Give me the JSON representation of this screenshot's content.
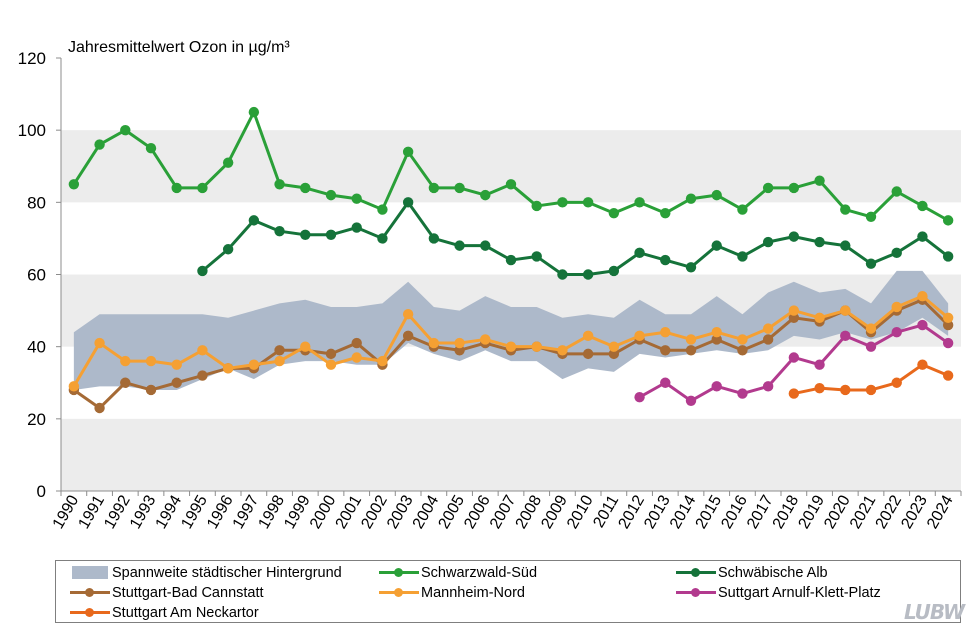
{
  "chart_data": {
    "type": "line",
    "title": "Jahresmittelwert Ozon in µg/m³",
    "years": [
      "1990",
      "1991",
      "1992",
      "1993",
      "1994",
      "1995",
      "1996",
      "1997",
      "1998",
      "1999",
      "2000",
      "2001",
      "2002",
      "2003",
      "2004",
      "2005",
      "2006",
      "2007",
      "2008",
      "2009",
      "2010",
      "2011",
      "2012",
      "2013",
      "2014",
      "2015",
      "2016",
      "2017",
      "2018",
      "2019",
      "2020",
      "2021",
      "2022",
      "2023",
      "2024"
    ],
    "ylim": [
      0,
      120
    ],
    "yticks": [
      0,
      20,
      40,
      60,
      80,
      100,
      120
    ],
    "band": {
      "name": "Spannweite städtischer Hintergrund",
      "color": "#adb9ca",
      "upper": [
        44,
        49,
        49,
        49,
        49,
        49,
        48,
        50,
        52,
        53,
        51,
        51,
        52,
        58,
        51,
        50,
        54,
        51,
        51,
        48,
        49,
        48,
        53,
        49,
        49,
        54,
        49,
        55,
        58,
        55,
        56,
        52,
        61,
        61,
        52
      ],
      "lower": [
        28,
        29,
        29,
        28,
        28,
        31,
        34,
        31,
        35,
        36,
        36,
        35,
        35,
        41,
        38,
        36,
        39,
        36,
        36,
        31,
        34,
        33,
        38,
        37,
        38,
        39,
        38,
        39,
        43,
        42,
        44,
        42,
        44,
        48,
        43
      ]
    },
    "series": [
      {
        "name": "Schwarzwald-Süd",
        "color": "#2aa038",
        "values": [
          85,
          96,
          100,
          95,
          84,
          84,
          91,
          105,
          85,
          84,
          82,
          81,
          78,
          94,
          84,
          84,
          82,
          85,
          79,
          80,
          80,
          77,
          80,
          77,
          81,
          82,
          78,
          84,
          84,
          86,
          78,
          76,
          83,
          79,
          75
        ]
      },
      {
        "name": "Schwäbische Alb",
        "color": "#15733a",
        "values": [
          null,
          null,
          null,
          null,
          null,
          61,
          67,
          75,
          72,
          71,
          71,
          73,
          70,
          80,
          70,
          68,
          68,
          64,
          65,
          60,
          60,
          61,
          66,
          64,
          62,
          68,
          65,
          69,
          70.5,
          69,
          68,
          63,
          66,
          70.5,
          65
        ]
      },
      {
        "name": "Stuttgart-Bad Cannstatt",
        "color": "#a56a35",
        "values": [
          28,
          23,
          30,
          28,
          30,
          32,
          34,
          34,
          39,
          39,
          38,
          41,
          35,
          43,
          40,
          39,
          41,
          39,
          40,
          38,
          38,
          38,
          42,
          39,
          39,
          42,
          39,
          42,
          48,
          47,
          50,
          44,
          50,
          53,
          46
        ]
      },
      {
        "name": "Mannheim-Nord",
        "color": "#f5a033",
        "values": [
          29,
          41,
          36,
          36,
          35,
          39,
          34,
          35,
          36,
          40,
          35,
          37,
          36,
          49,
          41,
          41,
          42,
          40,
          40,
          39,
          43,
          40,
          43,
          44,
          42,
          44,
          42,
          45,
          50,
          48,
          50,
          45,
          51,
          54,
          48
        ]
      },
      {
        "name": "Suttgart Arnulf-Klett-Platz",
        "color": "#b23a8e",
        "values": [
          null,
          null,
          null,
          null,
          null,
          null,
          null,
          null,
          null,
          null,
          null,
          null,
          null,
          null,
          null,
          null,
          null,
          null,
          null,
          null,
          null,
          null,
          26,
          30,
          25,
          29,
          27,
          29,
          37,
          35,
          43,
          40,
          44,
          46,
          41
        ]
      },
      {
        "name": "Stuttgart Am Neckartor",
        "color": "#e8691c",
        "values": [
          null,
          null,
          null,
          null,
          null,
          null,
          null,
          null,
          null,
          null,
          null,
          null,
          null,
          null,
          null,
          null,
          null,
          null,
          null,
          null,
          null,
          null,
          null,
          null,
          null,
          null,
          null,
          null,
          27,
          28.5,
          28,
          28,
          30,
          35,
          32
        ]
      }
    ]
  },
  "logo": {
    "text": "LUBW"
  }
}
